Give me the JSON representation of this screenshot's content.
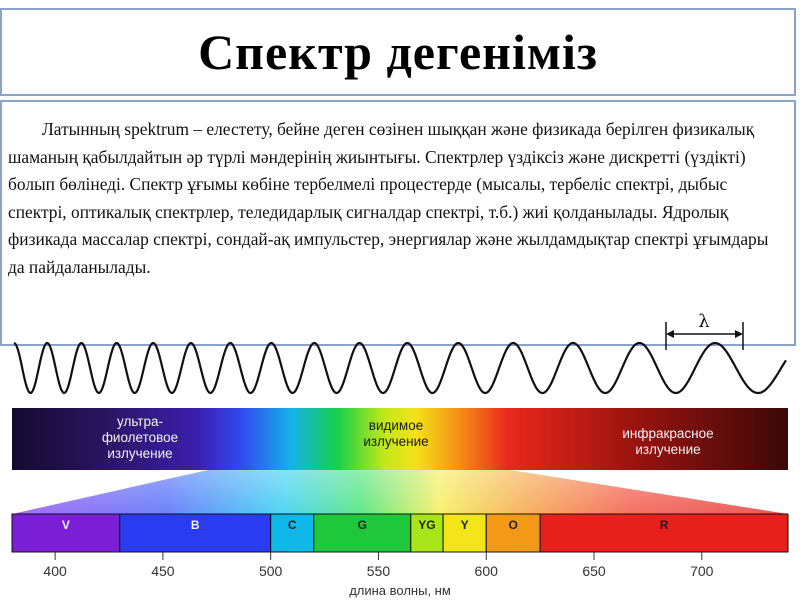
{
  "title": "Спектр дегеніміз",
  "paragraph": "Латынның spektrum – елестету, бейне деген сөзінен шыққан және физикада берілген физикалық шаманың қабылдайтын әр түрлі мәндерінің жиынтығы. Спектрлер үздіксіз және дискретті (үздікті) болып бөлінеді. Спектр ұғымы көбіне тербелмелі процестерде (мысалы, тербеліс спектрі, дыбыс спектрі, оптикалық спектрлер, теледидарлық сигналдар спектрі, т.б.) жиі қолданылады. Ядролық физикада массалар спектрі, сондай-ақ импульстер, энергиялар және жылдамдықтар спектрі ұғымдары да пайдаланылады.",
  "wave": {
    "lambda_label": "λ"
  },
  "spectrum_bar": {
    "uv_label_line1": "ультра-",
    "uv_label_line2": "фиолетовое",
    "uv_label_line3": "излучение",
    "visible_label_line1": "видимое",
    "visible_label_line2": "излучение",
    "ir_label_line1": "инфракрасное",
    "ir_label_line2": "излучение"
  },
  "chart_data": {
    "type": "diagram",
    "bands": [
      {
        "label": "V",
        "from": 380,
        "to": 430,
        "color": "#7b1fd6"
      },
      {
        "label": "B",
        "from": 430,
        "to": 500,
        "color": "#2a3cf0"
      },
      {
        "label": "C",
        "from": 500,
        "to": 520,
        "color": "#0fb8e8"
      },
      {
        "label": "G",
        "from": 520,
        "to": 565,
        "color": "#1ec83a"
      },
      {
        "label": "YG",
        "from": 565,
        "to": 580,
        "color": "#a8e61a"
      },
      {
        "label": "Y",
        "from": 580,
        "to": 600,
        "color": "#f2e61a"
      },
      {
        "label": "O",
        "from": 600,
        "to": 625,
        "color": "#f29a18"
      },
      {
        "label": "R",
        "from": 625,
        "to": 740,
        "color": "#e8201c"
      }
    ],
    "ticks": [
      400,
      450,
      500,
      550,
      600,
      650,
      700
    ],
    "xrange": [
      380,
      740
    ],
    "xlabel": "длина волны, нм"
  }
}
